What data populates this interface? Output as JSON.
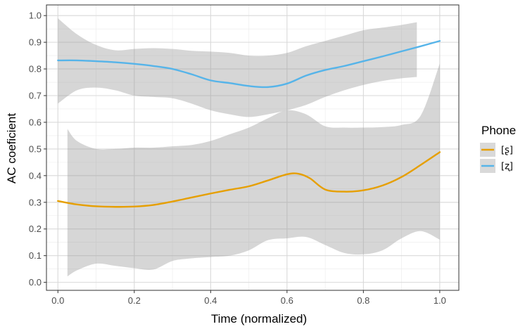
{
  "chart_data": {
    "type": "line",
    "title": "",
    "xlabel": "Time (normalized)",
    "ylabel": "AC coeficient",
    "xlim": [
      -0.03,
      1.05
    ],
    "ylim": [
      -0.03,
      1.04
    ],
    "xticks": [
      0.0,
      0.2,
      0.4,
      0.6,
      0.8,
      1.0
    ],
    "xtick_labels": [
      "0.0",
      "0.2",
      "0.4",
      "0.6",
      "0.8",
      "1.0"
    ],
    "yticks": [
      0.0,
      0.1,
      0.2,
      0.3,
      0.4,
      0.5,
      0.6,
      0.7,
      0.8,
      0.9,
      1.0
    ],
    "ytick_labels": [
      "0.0",
      "0.1",
      "0.2",
      "0.3",
      "0.4",
      "0.5",
      "0.6",
      "0.7",
      "0.8",
      "0.9",
      "1.0"
    ],
    "grid": true,
    "legend": {
      "title": "Phone",
      "placement": "right"
    },
    "series": [
      {
        "name": "[ʂ]",
        "color": "#E69F00",
        "x": [
          0.0,
          0.05,
          0.1,
          0.15,
          0.2,
          0.25,
          0.3,
          0.35,
          0.4,
          0.45,
          0.5,
          0.55,
          0.6,
          0.63,
          0.66,
          0.7,
          0.75,
          0.8,
          0.85,
          0.9,
          0.95,
          1.0
        ],
        "y": [
          0.305,
          0.292,
          0.285,
          0.283,
          0.284,
          0.29,
          0.303,
          0.318,
          0.333,
          0.347,
          0.36,
          0.382,
          0.405,
          0.407,
          0.39,
          0.348,
          0.34,
          0.345,
          0.363,
          0.395,
          0.44,
          0.488
        ],
        "band_x": [
          0.025,
          0.05,
          0.1,
          0.15,
          0.2,
          0.25,
          0.3,
          0.35,
          0.4,
          0.45,
          0.5,
          0.55,
          0.6,
          0.65,
          0.7,
          0.75,
          0.8,
          0.85,
          0.9,
          0.95,
          1.0
        ],
        "band_upper": [
          0.575,
          0.53,
          0.5,
          0.5,
          0.505,
          0.505,
          0.51,
          0.515,
          0.53,
          0.555,
          0.58,
          0.615,
          0.645,
          0.63,
          0.585,
          0.58,
          0.58,
          0.582,
          0.59,
          0.625,
          0.82
        ],
        "band_lower": [
          0.022,
          0.045,
          0.07,
          0.062,
          0.053,
          0.048,
          0.08,
          0.09,
          0.095,
          0.1,
          0.12,
          0.158,
          0.165,
          0.17,
          0.14,
          0.11,
          0.105,
          0.12,
          0.165,
          0.192,
          0.16
        ]
      },
      {
        "name": "[ʐ]",
        "color": "#56B4E9",
        "x": [
          0.0,
          0.05,
          0.1,
          0.15,
          0.2,
          0.25,
          0.3,
          0.35,
          0.4,
          0.45,
          0.5,
          0.55,
          0.6,
          0.65,
          0.7,
          0.75,
          0.8,
          0.85,
          0.9,
          0.95,
          1.0
        ],
        "y": [
          0.832,
          0.832,
          0.829,
          0.825,
          0.819,
          0.811,
          0.8,
          0.78,
          0.757,
          0.747,
          0.736,
          0.732,
          0.745,
          0.775,
          0.796,
          0.811,
          0.829,
          0.847,
          0.866,
          0.885,
          0.905
        ],
        "band_x": [
          0.0,
          0.05,
          0.1,
          0.15,
          0.2,
          0.25,
          0.3,
          0.35,
          0.4,
          0.45,
          0.5,
          0.55,
          0.6,
          0.65,
          0.7,
          0.75,
          0.8,
          0.85,
          0.9,
          0.94
        ],
        "band_upper": [
          0.99,
          0.93,
          0.89,
          0.87,
          0.875,
          0.878,
          0.875,
          0.868,
          0.865,
          0.86,
          0.85,
          0.85,
          0.86,
          0.885,
          0.905,
          0.925,
          0.945,
          0.955,
          0.965,
          0.975
        ],
        "band_lower": [
          0.67,
          0.72,
          0.73,
          0.72,
          0.7,
          0.695,
          0.69,
          0.67,
          0.645,
          0.63,
          0.62,
          0.63,
          0.645,
          0.665,
          0.695,
          0.72,
          0.74,
          0.755,
          0.765,
          0.77
        ]
      }
    ]
  }
}
